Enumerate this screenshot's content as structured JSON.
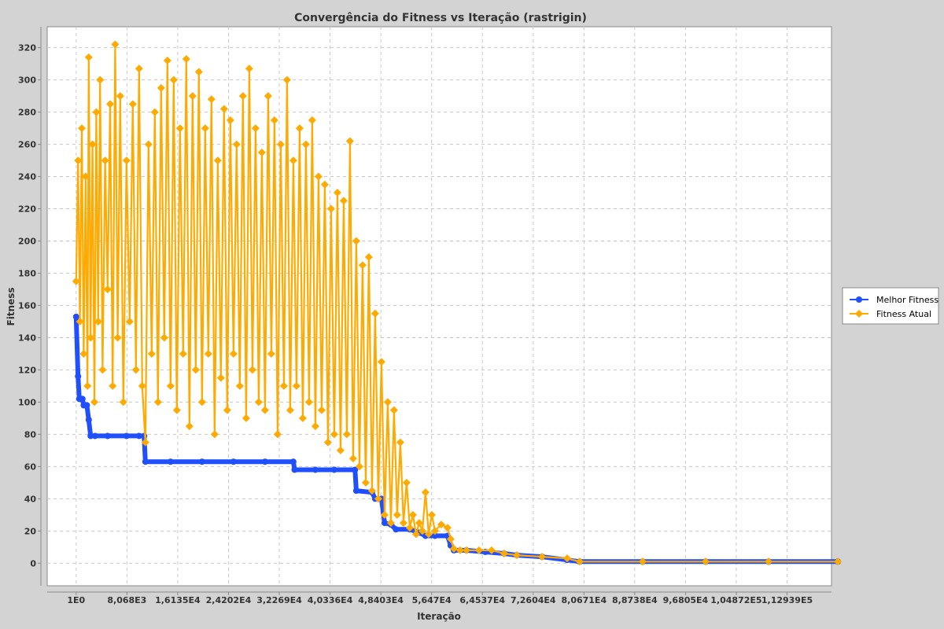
{
  "chart_data": {
    "type": "line",
    "title": "Convergência do Fitness vs Iteração (rastrigin)",
    "xlabel": "Iteração",
    "ylabel": "Fitness",
    "xlim": [
      -4600,
      120000
    ],
    "ylim": [
      -14,
      333
    ],
    "grid": true,
    "legend_position": "right",
    "x_ticks": [
      {
        "value": 1,
        "label": "1E0"
      },
      {
        "value": 8068,
        "label": "8,068E3"
      },
      {
        "value": 16135,
        "label": "1,6135E4"
      },
      {
        "value": 24202,
        "label": "2,4202E4"
      },
      {
        "value": 32269,
        "label": "3,2269E4"
      },
      {
        "value": 40336,
        "label": "4,0336E4"
      },
      {
        "value": 48403,
        "label": "4,8403E4"
      },
      {
        "value": 56470,
        "label": "5,647E4"
      },
      {
        "value": 64537,
        "label": "6,4537E4"
      },
      {
        "value": 72604,
        "label": "7,2604E4"
      },
      {
        "value": 80671,
        "label": "8,0671E4"
      },
      {
        "value": 88738,
        "label": "8,8738E4"
      },
      {
        "value": 96805,
        "label": "9,6805E4"
      },
      {
        "value": 104872,
        "label": "1,04872E5"
      },
      {
        "value": 112939,
        "label": "1,12939E5"
      }
    ],
    "y_ticks": [
      0,
      20,
      40,
      60,
      80,
      100,
      120,
      140,
      160,
      180,
      200,
      220,
      240,
      260,
      280,
      300,
      320
    ],
    "series": [
      {
        "name": "Melhor Fitness",
        "color": "#1f4fff",
        "marker": "circle",
        "points": [
          [
            1,
            153
          ],
          [
            300,
            116
          ],
          [
            500,
            102
          ],
          [
            1000,
            102
          ],
          [
            1200,
            98
          ],
          [
            1700,
            98
          ],
          [
            2000,
            89
          ],
          [
            2300,
            79
          ],
          [
            3000,
            79
          ],
          [
            5000,
            79
          ],
          [
            8000,
            79
          ],
          [
            10000,
            79
          ],
          [
            10800,
            79
          ],
          [
            11000,
            63
          ],
          [
            15000,
            63
          ],
          [
            20000,
            63
          ],
          [
            25000,
            63
          ],
          [
            30000,
            63
          ],
          [
            34500,
            63
          ],
          [
            34700,
            58
          ],
          [
            38000,
            58
          ],
          [
            41000,
            58
          ],
          [
            44300,
            58
          ],
          [
            44500,
            45
          ],
          [
            47000,
            44
          ],
          [
            47500,
            40
          ],
          [
            48500,
            40
          ],
          [
            49000,
            25
          ],
          [
            50000,
            24
          ],
          [
            50800,
            21
          ],
          [
            53000,
            21
          ],
          [
            54500,
            19
          ],
          [
            55500,
            17
          ],
          [
            57000,
            17
          ],
          [
            59000,
            17
          ],
          [
            59500,
            11
          ],
          [
            60000,
            8
          ],
          [
            62000,
            8
          ],
          [
            65000,
            7
          ],
          [
            68000,
            6
          ],
          [
            70000,
            5
          ],
          [
            74000,
            4
          ],
          [
            78000,
            2
          ],
          [
            80000,
            1
          ],
          [
            90000,
            1
          ],
          [
            100000,
            1
          ],
          [
            110000,
            1
          ],
          [
            121000,
            1
          ]
        ]
      },
      {
        "name": "Fitness Atual",
        "color": "#ffaa00",
        "marker": "diamond",
        "points": [
          [
            1,
            175
          ],
          [
            300,
            250
          ],
          [
            600,
            150
          ],
          [
            900,
            270
          ],
          [
            1200,
            130
          ],
          [
            1500,
            240
          ],
          [
            1800,
            110
          ],
          [
            2000,
            314
          ],
          [
            2300,
            140
          ],
          [
            2600,
            260
          ],
          [
            2900,
            100
          ],
          [
            3200,
            280
          ],
          [
            3500,
            150
          ],
          [
            3800,
            300
          ],
          [
            4200,
            120
          ],
          [
            4600,
            250
          ],
          [
            5000,
            170
          ],
          [
            5400,
            285
          ],
          [
            5800,
            110
          ],
          [
            6200,
            322
          ],
          [
            6600,
            140
          ],
          [
            7000,
            290
          ],
          [
            7500,
            100
          ],
          [
            8000,
            250
          ],
          [
            8500,
            150
          ],
          [
            9000,
            285
          ],
          [
            9500,
            120
          ],
          [
            10000,
            307
          ],
          [
            10500,
            110
          ],
          [
            11000,
            75
          ],
          [
            11500,
            260
          ],
          [
            12000,
            130
          ],
          [
            12500,
            280
          ],
          [
            13000,
            100
          ],
          [
            13500,
            295
          ],
          [
            14000,
            140
          ],
          [
            14500,
            312
          ],
          [
            15000,
            110
          ],
          [
            15500,
            300
          ],
          [
            16000,
            95
          ],
          [
            16500,
            270
          ],
          [
            17000,
            130
          ],
          [
            17500,
            313
          ],
          [
            18000,
            85
          ],
          [
            18500,
            290
          ],
          [
            19000,
            120
          ],
          [
            19500,
            305
          ],
          [
            20000,
            100
          ],
          [
            20500,
            270
          ],
          [
            21000,
            130
          ],
          [
            21500,
            288
          ],
          [
            22000,
            80
          ],
          [
            22500,
            250
          ],
          [
            23000,
            115
          ],
          [
            23500,
            282
          ],
          [
            24000,
            95
          ],
          [
            24500,
            275
          ],
          [
            25000,
            130
          ],
          [
            25500,
            260
          ],
          [
            26000,
            110
          ],
          [
            26500,
            290
          ],
          [
            27000,
            90
          ],
          [
            27500,
            307
          ],
          [
            28000,
            120
          ],
          [
            28500,
            270
          ],
          [
            29000,
            100
          ],
          [
            29500,
            255
          ],
          [
            30000,
            95
          ],
          [
            30500,
            290
          ],
          [
            31000,
            130
          ],
          [
            31500,
            275
          ],
          [
            32000,
            80
          ],
          [
            32500,
            260
          ],
          [
            33000,
            110
          ],
          [
            33500,
            300
          ],
          [
            34000,
            95
          ],
          [
            34500,
            250
          ],
          [
            35000,
            110
          ],
          [
            35500,
            270
          ],
          [
            36000,
            90
          ],
          [
            36500,
            260
          ],
          [
            37000,
            100
          ],
          [
            37500,
            275
          ],
          [
            38000,
            85
          ],
          [
            38500,
            240
          ],
          [
            39000,
            95
          ],
          [
            39500,
            235
          ],
          [
            40000,
            75
          ],
          [
            40500,
            220
          ],
          [
            41000,
            80
          ],
          [
            41500,
            230
          ],
          [
            42000,
            70
          ],
          [
            42500,
            225
          ],
          [
            43000,
            80
          ],
          [
            43500,
            262
          ],
          [
            44000,
            65
          ],
          [
            44500,
            200
          ],
          [
            45000,
            60
          ],
          [
            45500,
            185
          ],
          [
            46000,
            50
          ],
          [
            46500,
            190
          ],
          [
            47000,
            45
          ],
          [
            47500,
            155
          ],
          [
            48000,
            40
          ],
          [
            48500,
            125
          ],
          [
            49000,
            30
          ],
          [
            49500,
            100
          ],
          [
            50000,
            25
          ],
          [
            50500,
            95
          ],
          [
            51000,
            30
          ],
          [
            51500,
            75
          ],
          [
            52000,
            25
          ],
          [
            52500,
            50
          ],
          [
            53000,
            22
          ],
          [
            53500,
            30
          ],
          [
            54000,
            18
          ],
          [
            54500,
            25
          ],
          [
            55000,
            20
          ],
          [
            55500,
            44
          ],
          [
            56000,
            18
          ],
          [
            56500,
            30
          ],
          [
            57000,
            20
          ],
          [
            58000,
            24
          ],
          [
            59000,
            22
          ],
          [
            59500,
            15
          ],
          [
            60000,
            9
          ],
          [
            61000,
            8
          ],
          [
            62000,
            8
          ],
          [
            64000,
            8
          ],
          [
            66000,
            8
          ],
          [
            68000,
            6
          ],
          [
            70000,
            5
          ],
          [
            74000,
            4
          ],
          [
            78000,
            3
          ],
          [
            80000,
            1
          ],
          [
            90000,
            1
          ],
          [
            100000,
            1
          ],
          [
            110000,
            1
          ],
          [
            121000,
            1
          ]
        ]
      }
    ]
  }
}
